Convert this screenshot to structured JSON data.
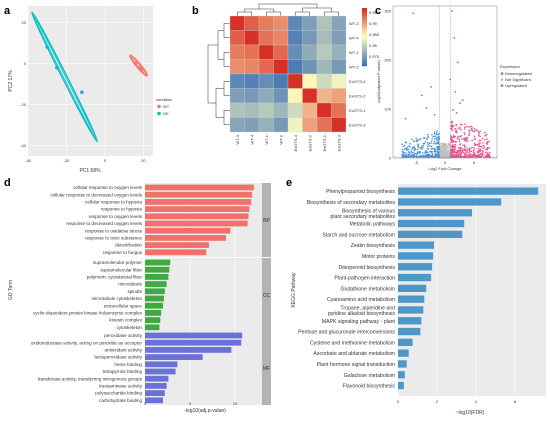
{
  "panels": {
    "a": "a",
    "b": "b",
    "c": "c",
    "d": "d",
    "e": "e"
  },
  "chart_data": [
    {
      "type": "scatter",
      "panel": "a",
      "xlabel": "PC1 68%",
      "ylabel": "PC2 17%",
      "xticks": [
        "-40",
        "-20",
        "0",
        "20"
      ],
      "yticks": [
        "-40",
        "-20",
        "0",
        "20"
      ],
      "xlim": [
        -40,
        25
      ],
      "ylim": [
        -45,
        28
      ],
      "legend_title": "condition",
      "legend_position": "right",
      "series": [
        {
          "name": "WT",
          "color": "#f8766d",
          "points": [
            [
              16,
              0
            ],
            [
              18,
              -2
            ],
            [
              19,
              -3
            ]
          ],
          "ellipse": {
            "x1": 13,
            "y1": 4,
            "x2": 22,
            "y2": -6,
            "width": 2.2
          }
        },
        {
          "name": "OE",
          "color": "#00bfc4",
          "points": [
            [
              -30,
              8
            ],
            [
              -25,
              -2
            ],
            [
              -12,
              -14
            ]
          ],
          "ellipse": {
            "x1": -38,
            "y1": 25,
            "x2": -4,
            "y2": -38,
            "width": 2.4
          }
        }
      ]
    },
    {
      "type": "heatmap",
      "panel": "b",
      "rows": [
        "WT-3",
        "WT-4",
        "WT-1",
        "WT-2",
        "ExGTS-4",
        "ExGTS-2",
        "ExGTS-1",
        "ExGTS-3"
      ],
      "cols": [
        "WT-3",
        "WT-4",
        "WT-1",
        "WT-2",
        "ExGTS-4",
        "ExGTS-2",
        "ExGTS-1",
        "ExGTS-3"
      ],
      "values": [
        [
          1.0,
          0.995,
          0.992,
          0.99,
          0.958,
          0.962,
          0.968,
          0.963
        ],
        [
          0.995,
          1.0,
          0.993,
          0.991,
          0.957,
          0.961,
          0.967,
          0.962
        ],
        [
          0.992,
          0.993,
          1.0,
          0.994,
          0.959,
          0.964,
          0.969,
          0.965
        ],
        [
          0.99,
          0.991,
          0.994,
          1.0,
          0.956,
          0.96,
          0.966,
          0.961
        ],
        [
          0.958,
          0.957,
          0.959,
          0.956,
          1.0,
          0.979,
          0.972,
          0.976
        ],
        [
          0.962,
          0.961,
          0.964,
          0.96,
          0.979,
          1.0,
          0.986,
          0.988
        ],
        [
          0.968,
          0.967,
          0.969,
          0.966,
          0.972,
          0.986,
          1.0,
          0.993
        ],
        [
          0.963,
          0.962,
          0.965,
          0.961,
          0.976,
          0.988,
          0.993,
          1.0
        ]
      ],
      "colorbar_ticks": [
        "0.995",
        "0.99",
        "0.985",
        "0.98",
        "0.975"
      ],
      "colors": {
        "high": "#d73027",
        "mid": "#ffffbf",
        "low": "#4575b4"
      }
    },
    {
      "type": "scatter",
      "panel": "c",
      "xlabel": "Log2 Fold Change",
      "ylabel": "-log10(adjusted P-value)",
      "xticks": [
        "-5",
        "0",
        "5"
      ],
      "yticks": [
        "0",
        "100",
        "200",
        "300"
      ],
      "xlim": [
        -9,
        9
      ],
      "ylim": [
        0,
        310
      ],
      "legend_title": "Expression",
      "legend_position": "right",
      "legend": [
        {
          "name": "Downregulated",
          "color": "#4a90d9"
        },
        {
          "name": "Not Significant",
          "color": "#bdbdbd"
        },
        {
          "name": "Upregulated",
          "color": "#e7548b"
        }
      ]
    },
    {
      "type": "bar",
      "panel": "d",
      "orientation": "horizontal",
      "xlabel": "-log10(adj.p-value)",
      "ylabel": "GO Term",
      "xticks": [
        "0",
        "5",
        "10"
      ],
      "xlim": [
        0,
        13
      ],
      "groups": [
        {
          "name": "BP",
          "color": "#f0706a",
          "terms": [
            "cellular response to oxygen levels",
            "cellular response to decreased oxygen levels",
            "cellular response to hypoxia",
            "response to hypoxia",
            "response to oxygen levels",
            "response to decreased oxygen levels",
            "response to oxidative stress",
            "response to toxic substance",
            "detoxification",
            "response to fungus"
          ],
          "values": [
            12.1,
            11.9,
            11.8,
            11.6,
            11.5,
            11.4,
            9.5,
            9.0,
            7.1,
            6.8
          ]
        },
        {
          "name": "CC",
          "color": "#3faa3f",
          "terms": [
            "supramolecular polymer",
            "supramolecular fiber",
            "polymeric cytoskeletal fiber",
            "microtubule",
            "spindle",
            "microtubule cytoskeleton",
            "extracellular space",
            "cyclin-dependent protein kinase holoenzyme complex",
            "kinesin complex",
            "cytoskeleton"
          ],
          "values": [
            2.8,
            2.7,
            2.6,
            2.4,
            2.2,
            2.1,
            2.0,
            1.8,
            1.7,
            1.6
          ]
        },
        {
          "name": "MF",
          "color": "#6a72d8",
          "terms": [
            "peroxidase activity",
            "oxidoreductase activity, acting on peroxide as acceptor",
            "antioxidant activity",
            "lactoperoxidase activity",
            "heme binding",
            "tetrapyrrole binding",
            "transferase activity, transferring nitrogenous groups",
            "transaminase activity",
            "polysaccharide binding",
            "carbohydrate binding"
          ],
          "values": [
            10.8,
            10.7,
            9.6,
            6.4,
            3.6,
            3.4,
            2.6,
            2.4,
            2.2,
            2.0
          ]
        }
      ]
    },
    {
      "type": "bar",
      "panel": "e",
      "orientation": "horizontal",
      "xlabel": "~log10(FDR)",
      "ylabel": "KEGG Pathway",
      "xticks": [
        "0",
        "2",
        "4",
        "6"
      ],
      "xlim": [
        0,
        7.6
      ],
      "color": "#4f97c8",
      "categories": [
        "Phenylpropanoid biosynthesis",
        "Biosynthesis of secondary metabolites",
        "Biosynthesis of various plant secondary metabolites",
        "Metabolic pathways",
        "Starch and sucrose metabolism",
        "Zeatin biosynthesis",
        "Motor proteins",
        "Diterpenoid biosynthesis",
        "Plant-pathogen interaction",
        "Glutathione metabolism",
        "Cyanoamino acid metabolism",
        "Tropane, piperidine and pyridine alkaloid biosynthesis",
        "MAPK signaling pathway - plant",
        "Pentose and glucuronate interconversions",
        "Cysteine and methionine metabolism",
        "Ascorbate and aldarate metabolism",
        "Plant hormone signal transduction",
        "Galactose metabolism",
        "Flavonoid biosynthesis"
      ],
      "values": [
        7.2,
        5.3,
        3.8,
        3.4,
        3.3,
        1.85,
        1.8,
        1.75,
        1.7,
        1.45,
        1.35,
        1.3,
        1.2,
        1.15,
        0.75,
        0.55,
        0.45,
        0.35,
        0.3
      ]
    }
  ]
}
